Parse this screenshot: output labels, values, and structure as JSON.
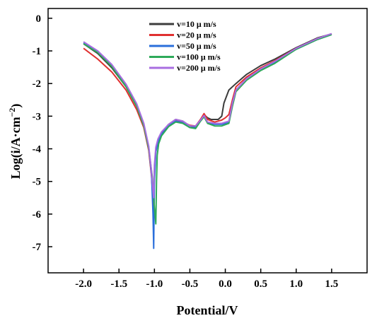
{
  "chart_data": {
    "type": "line",
    "title": "",
    "xlabel": "Potential/V",
    "ylabel": "Log(i/A·cm",
    "ylabel_sup": "−2",
    "ylabel_tail": ")",
    "xlim": [
      -2.5,
      2.0
    ],
    "ylim": [
      -7.8,
      0.3
    ],
    "x_ticks": [
      -2.0,
      -1.5,
      -1.0,
      -0.5,
      0.0,
      0.5,
      1.0,
      1.5
    ],
    "x_tick_labels": [
      "-2.0",
      "-1.5",
      "-1.0",
      "-0.5",
      "0.0",
      "0.5",
      "1.0",
      "1.5"
    ],
    "y_ticks": [
      0,
      -1,
      -2,
      -3,
      -4,
      -5,
      -6,
      -7
    ],
    "y_tick_labels": [
      "0",
      "-1",
      "-2",
      "-3",
      "-4",
      "-5",
      "-6",
      "-7"
    ],
    "grid": false,
    "legend_position": "top-center",
    "series": [
      {
        "name": "v=10 μ m/s",
        "color": "#3c3c3c",
        "points": [
          [
            -2.0,
            -0.78
          ],
          [
            -1.8,
            -1.08
          ],
          [
            -1.6,
            -1.52
          ],
          [
            -1.4,
            -2.1
          ],
          [
            -1.25,
            -2.7
          ],
          [
            -1.15,
            -3.3
          ],
          [
            -1.08,
            -4.0
          ],
          [
            -1.04,
            -4.8
          ],
          [
            -1.02,
            -5.6
          ],
          [
            -1.01,
            -6.0
          ],
          [
            -1.0,
            -4.8
          ],
          [
            -0.98,
            -4.05
          ],
          [
            -0.95,
            -3.75
          ],
          [
            -0.9,
            -3.5
          ],
          [
            -0.8,
            -3.25
          ],
          [
            -0.7,
            -3.1
          ],
          [
            -0.6,
            -3.15
          ],
          [
            -0.5,
            -3.3
          ],
          [
            -0.42,
            -3.32
          ],
          [
            -0.35,
            -3.1
          ],
          [
            -0.3,
            -2.95
          ],
          [
            -0.25,
            -3.05
          ],
          [
            -0.2,
            -3.1
          ],
          [
            -0.1,
            -3.1
          ],
          [
            -0.05,
            -3.0
          ],
          [
            -0.02,
            -2.6
          ],
          [
            0.05,
            -2.2
          ],
          [
            0.15,
            -2.0
          ],
          [
            0.3,
            -1.72
          ],
          [
            0.5,
            -1.45
          ],
          [
            0.7,
            -1.25
          ],
          [
            1.0,
            -0.9
          ],
          [
            1.3,
            -0.6
          ],
          [
            1.5,
            -0.48
          ]
        ]
      },
      {
        "name": "v=20 μ m/s",
        "color": "#e03030",
        "points": [
          [
            -2.0,
            -0.92
          ],
          [
            -1.8,
            -1.25
          ],
          [
            -1.6,
            -1.65
          ],
          [
            -1.4,
            -2.2
          ],
          [
            -1.25,
            -2.8
          ],
          [
            -1.15,
            -3.35
          ],
          [
            -1.08,
            -4.05
          ],
          [
            -1.04,
            -4.85
          ],
          [
            -1.02,
            -5.6
          ],
          [
            -1.01,
            -5.9
          ],
          [
            -1.0,
            -4.7
          ],
          [
            -0.98,
            -4.0
          ],
          [
            -0.95,
            -3.75
          ],
          [
            -0.9,
            -3.5
          ],
          [
            -0.8,
            -3.28
          ],
          [
            -0.7,
            -3.12
          ],
          [
            -0.6,
            -3.18
          ],
          [
            -0.5,
            -3.28
          ],
          [
            -0.42,
            -3.3
          ],
          [
            -0.35,
            -3.1
          ],
          [
            -0.3,
            -2.92
          ],
          [
            -0.25,
            -3.1
          ],
          [
            -0.15,
            -3.18
          ],
          [
            -0.05,
            -3.12
          ],
          [
            0.0,
            -3.05
          ],
          [
            0.05,
            -2.95
          ],
          [
            0.1,
            -2.5
          ],
          [
            0.15,
            -2.1
          ],
          [
            0.3,
            -1.8
          ],
          [
            0.5,
            -1.52
          ],
          [
            0.7,
            -1.3
          ],
          [
            1.0,
            -0.92
          ],
          [
            1.3,
            -0.62
          ],
          [
            1.5,
            -0.48
          ]
        ]
      },
      {
        "name": "v=50 μ m/s",
        "color": "#2a6fdb",
        "points": [
          [
            -2.0,
            -0.75
          ],
          [
            -1.8,
            -1.02
          ],
          [
            -1.6,
            -1.45
          ],
          [
            -1.4,
            -2.05
          ],
          [
            -1.25,
            -2.65
          ],
          [
            -1.15,
            -3.25
          ],
          [
            -1.08,
            -3.95
          ],
          [
            -1.04,
            -4.8
          ],
          [
            -1.02,
            -6.0
          ],
          [
            -1.01,
            -7.05
          ],
          [
            -1.0,
            -5.0
          ],
          [
            -0.98,
            -4.1
          ],
          [
            -0.95,
            -3.8
          ],
          [
            -0.9,
            -3.55
          ],
          [
            -0.8,
            -3.3
          ],
          [
            -0.7,
            -3.15
          ],
          [
            -0.6,
            -3.2
          ],
          [
            -0.5,
            -3.35
          ],
          [
            -0.42,
            -3.35
          ],
          [
            -0.35,
            -3.15
          ],
          [
            -0.3,
            -3.0
          ],
          [
            -0.25,
            -3.2
          ],
          [
            -0.15,
            -3.25
          ],
          [
            -0.05,
            -3.25
          ],
          [
            0.05,
            -3.2
          ],
          [
            0.1,
            -2.6
          ],
          [
            0.15,
            -2.2
          ],
          [
            0.3,
            -1.85
          ],
          [
            0.5,
            -1.58
          ],
          [
            0.7,
            -1.35
          ],
          [
            1.0,
            -0.95
          ],
          [
            1.3,
            -0.65
          ],
          [
            1.5,
            -0.5
          ]
        ]
      },
      {
        "name": "v=100 μ m/s",
        "color": "#2eaa5a",
        "points": [
          [
            -2.0,
            -0.78
          ],
          [
            -1.8,
            -1.05
          ],
          [
            -1.6,
            -1.48
          ],
          [
            -1.4,
            -2.1
          ],
          [
            -1.25,
            -2.7
          ],
          [
            -1.15,
            -3.3
          ],
          [
            -1.08,
            -4.0
          ],
          [
            -1.03,
            -4.85
          ],
          [
            -1.0,
            -5.8
          ],
          [
            -0.98,
            -6.3
          ],
          [
            -0.97,
            -5.0
          ],
          [
            -0.96,
            -4.2
          ],
          [
            -0.94,
            -3.85
          ],
          [
            -0.9,
            -3.6
          ],
          [
            -0.8,
            -3.32
          ],
          [
            -0.7,
            -3.18
          ],
          [
            -0.6,
            -3.22
          ],
          [
            -0.5,
            -3.35
          ],
          [
            -0.42,
            -3.38
          ],
          [
            -0.35,
            -3.15
          ],
          [
            -0.3,
            -3.02
          ],
          [
            -0.25,
            -3.22
          ],
          [
            -0.15,
            -3.3
          ],
          [
            -0.05,
            -3.3
          ],
          [
            0.05,
            -3.22
          ],
          [
            0.1,
            -2.7
          ],
          [
            0.15,
            -2.25
          ],
          [
            0.3,
            -1.9
          ],
          [
            0.5,
            -1.6
          ],
          [
            0.7,
            -1.38
          ],
          [
            1.0,
            -0.95
          ],
          [
            1.3,
            -0.65
          ],
          [
            1.5,
            -0.5
          ]
        ]
      },
      {
        "name": "v=200 μ m/s",
        "color": "#a86ee0",
        "points": [
          [
            -2.0,
            -0.72
          ],
          [
            -1.8,
            -1.0
          ],
          [
            -1.6,
            -1.42
          ],
          [
            -1.4,
            -2.02
          ],
          [
            -1.25,
            -2.62
          ],
          [
            -1.15,
            -3.22
          ],
          [
            -1.08,
            -3.92
          ],
          [
            -1.04,
            -4.7
          ],
          [
            -1.02,
            -5.3
          ],
          [
            -1.01,
            -5.5
          ],
          [
            -1.0,
            -4.5
          ],
          [
            -0.98,
            -3.95
          ],
          [
            -0.95,
            -3.7
          ],
          [
            -0.9,
            -3.48
          ],
          [
            -0.8,
            -3.25
          ],
          [
            -0.7,
            -3.1
          ],
          [
            -0.6,
            -3.15
          ],
          [
            -0.5,
            -3.3
          ],
          [
            -0.42,
            -3.3
          ],
          [
            -0.35,
            -3.12
          ],
          [
            -0.3,
            -2.98
          ],
          [
            -0.25,
            -3.18
          ],
          [
            -0.15,
            -3.22
          ],
          [
            -0.05,
            -3.22
          ],
          [
            0.05,
            -3.15
          ],
          [
            0.1,
            -2.6
          ],
          [
            0.15,
            -2.2
          ],
          [
            0.3,
            -1.85
          ],
          [
            0.5,
            -1.55
          ],
          [
            0.7,
            -1.32
          ],
          [
            1.0,
            -0.92
          ],
          [
            1.3,
            -0.62
          ],
          [
            1.5,
            -0.47
          ]
        ]
      }
    ]
  }
}
